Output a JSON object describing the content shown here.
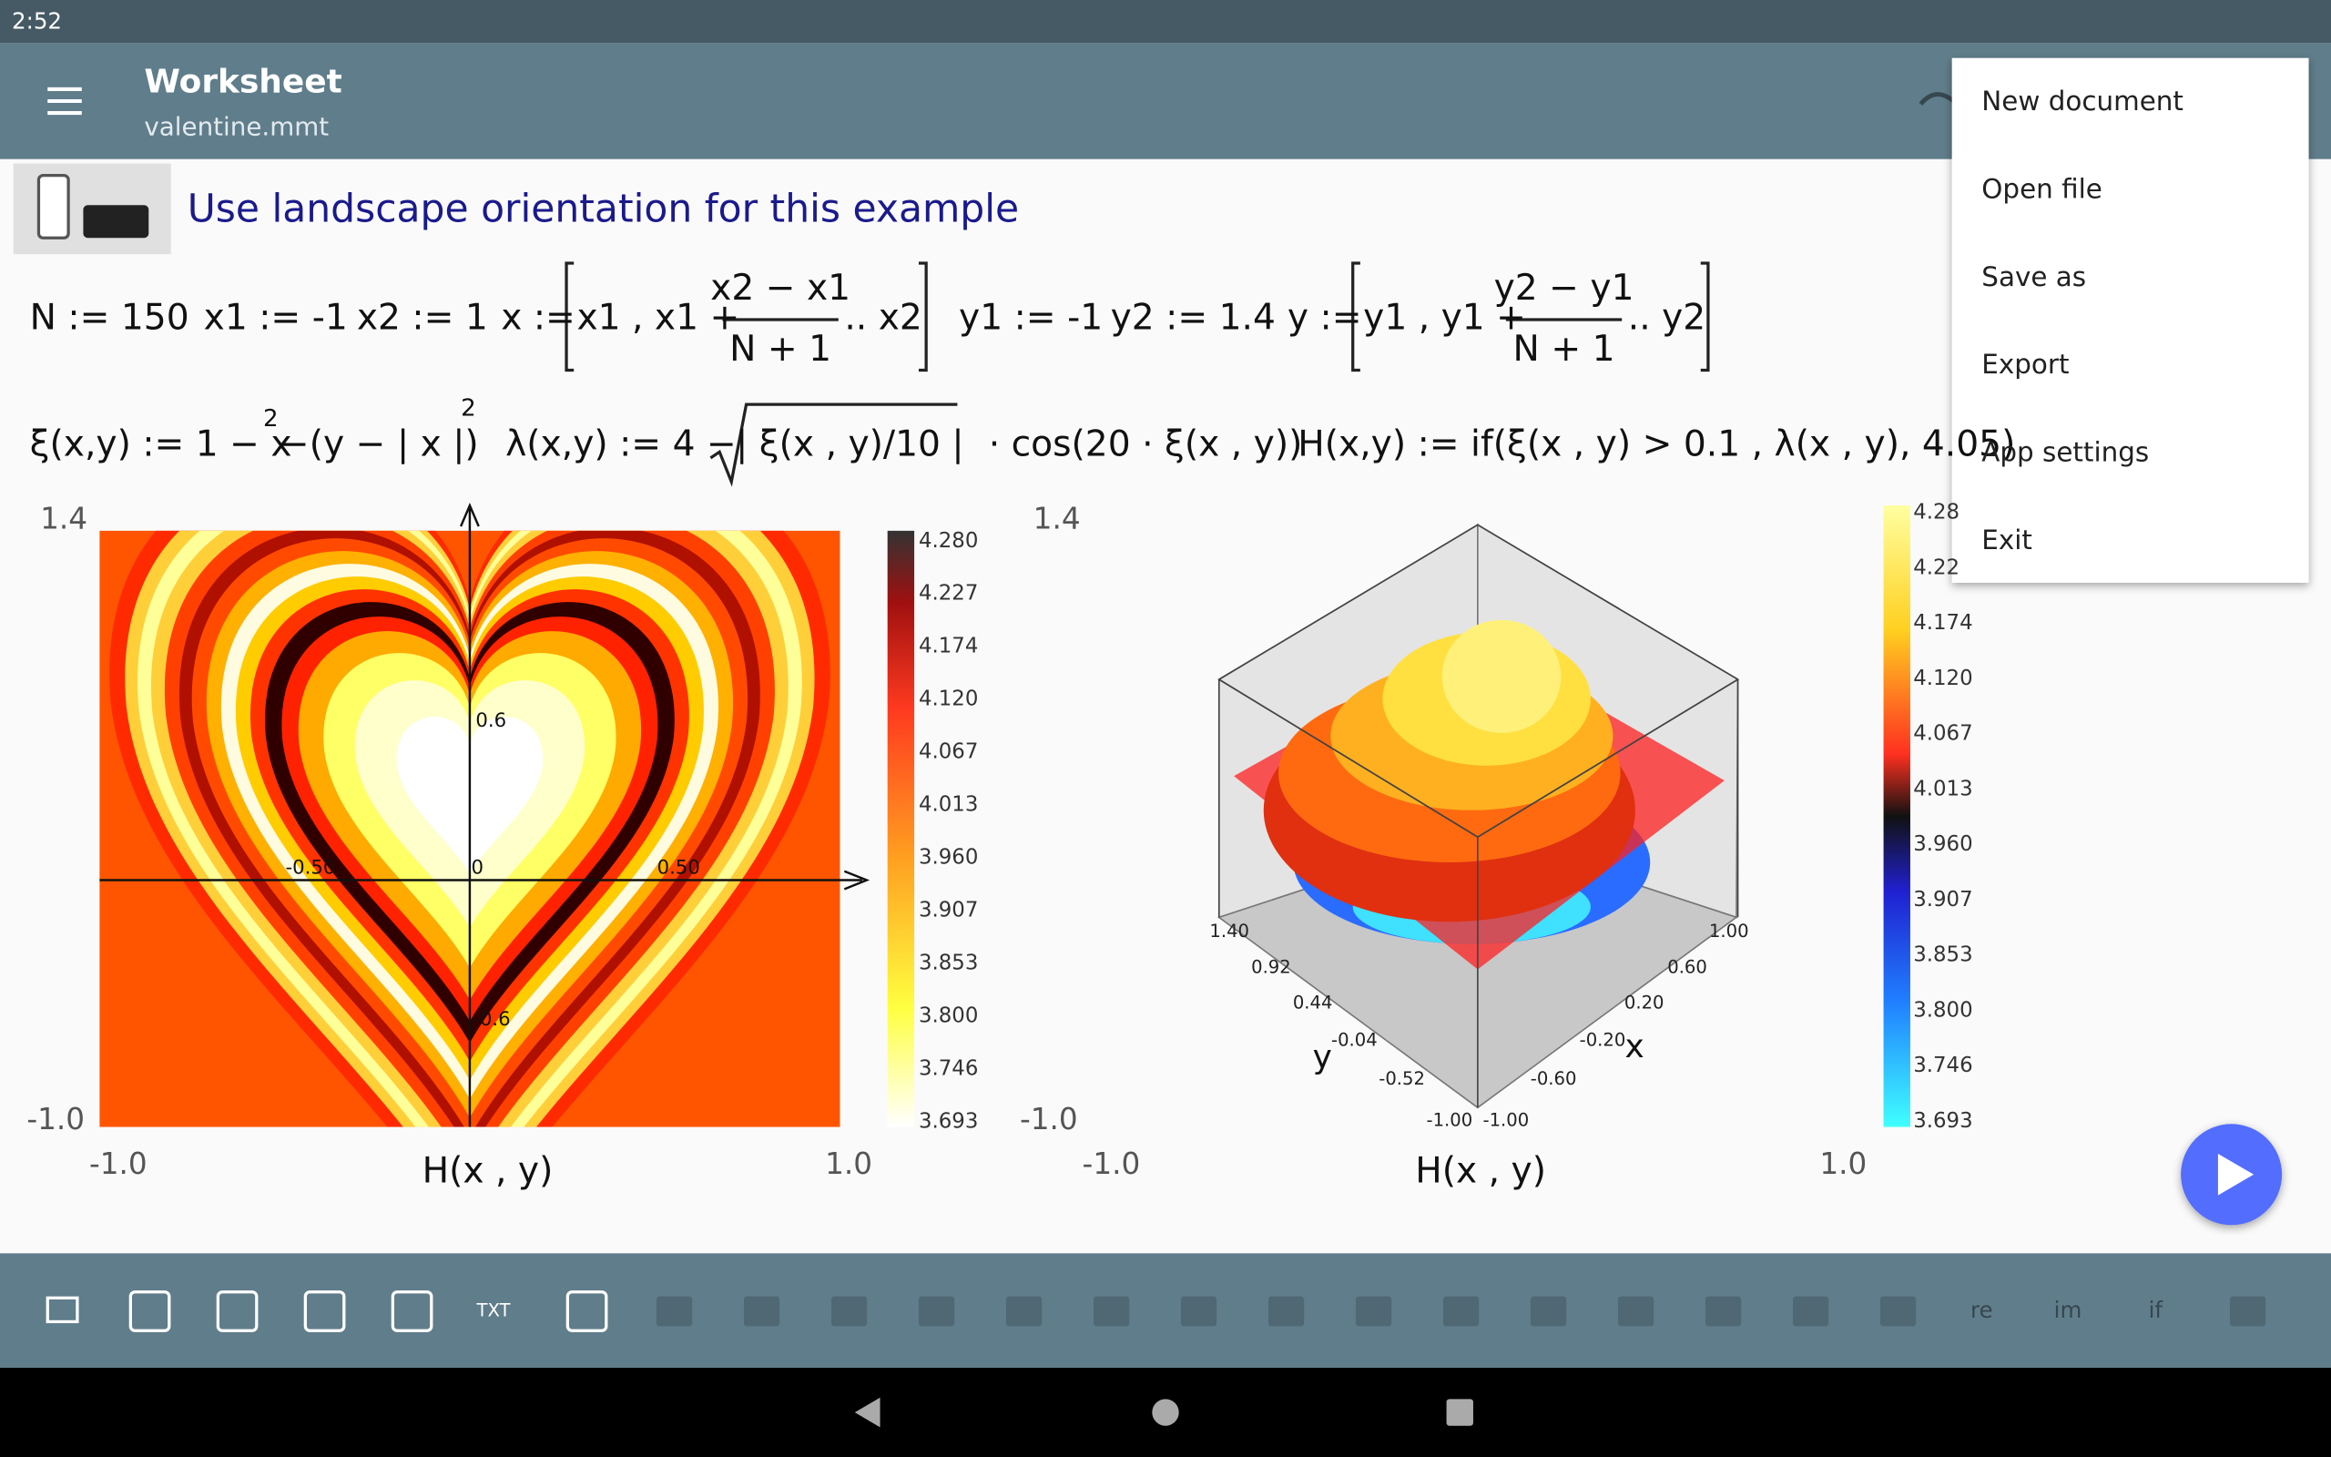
{
  "status_bar": {
    "time": "2:52"
  },
  "app_bar": {
    "title": "Worksheet",
    "subtitle": "valentine.mmt"
  },
  "menu": {
    "items": [
      "New document",
      "Open file",
      "Save as",
      "Export",
      "App settings",
      "Exit"
    ]
  },
  "banner": {
    "text": "Use landscape orientation for this example"
  },
  "formulas": {
    "row1": [
      "N := 150",
      "x1 := -1",
      "x2 := 1",
      "x :=",
      "x1 , x1 +",
      "x2 − x1",
      "N + 1",
      ".. x2",
      "y1 := -1",
      "y2 := 1.4",
      "y :=",
      "y1 , y1 +",
      "y2 − y1",
      "N + 1",
      ".. y2"
    ],
    "row2": [
      "ξ(x,y) := 1 − x",
      "2",
      "−(y − | x |)",
      "2",
      "λ(x,y) := 4 −",
      "| ξ(x , y)/10 |",
      "· cos(20 · ξ(x , y))",
      "H(x,y) := if(ξ(x , y) > 0.1 , λ(x , y), 4.05)"
    ]
  },
  "plot_left": {
    "y_top": "1.4",
    "y_bottom": "-1.0",
    "x_left": "-1.0",
    "x_right": "1.0",
    "xlabel": "H(x , y)",
    "axis_ticks": [
      "0.6",
      "-0.50",
      "0",
      "0.50",
      "-0.6"
    ],
    "colorbar": [
      "4.280",
      "4.227",
      "4.174",
      "4.120",
      "4.067",
      "4.013",
      "3.960",
      "3.907",
      "3.853",
      "3.800",
      "3.746",
      "3.693"
    ]
  },
  "plot_right": {
    "y_top": "1.4",
    "y_bottom": "-1.0",
    "x_left": "-1.0",
    "x_right": "1.0",
    "xlabel": "H(x , y)",
    "x_ticks": [
      "1.00",
      "0.60",
      "0.20",
      "-0.20",
      "-0.60",
      "-1.00"
    ],
    "y_ticks": [
      "1.40",
      "0.92",
      "0.44",
      "-0.04",
      "-0.52",
      "-1.00"
    ],
    "x_name": "x",
    "y_name": "y",
    "colorbar": [
      "4.28",
      "4.22",
      "4.174",
      "4.120",
      "4.067",
      "4.013",
      "3.960",
      "3.907",
      "3.853",
      "3.800",
      "3.746",
      "3.693"
    ]
  },
  "toolbar": {
    "labels": [
      "TXT",
      "re",
      "im",
      "if"
    ]
  }
}
